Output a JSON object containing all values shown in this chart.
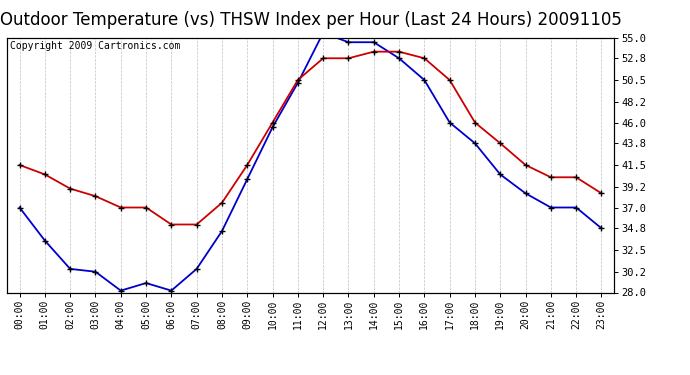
{
  "title": "Outdoor Temperature (vs) THSW Index per Hour (Last 24 Hours) 20091105",
  "copyright": "Copyright 2009 Cartronics.com",
  "hours": [
    "00:00",
    "01:00",
    "02:00",
    "03:00",
    "04:00",
    "05:00",
    "06:00",
    "07:00",
    "08:00",
    "09:00",
    "10:00",
    "11:00",
    "12:00",
    "13:00",
    "14:00",
    "15:00",
    "16:00",
    "17:00",
    "18:00",
    "19:00",
    "20:00",
    "21:00",
    "22:00",
    "23:00"
  ],
  "temp_blue": [
    37.0,
    33.5,
    30.5,
    30.2,
    28.2,
    29.0,
    28.2,
    30.5,
    34.5,
    40.0,
    45.5,
    50.2,
    55.5,
    54.5,
    54.5,
    52.8,
    50.5,
    46.0,
    43.8,
    40.5,
    38.5,
    37.0,
    37.0,
    34.8
  ],
  "thsw_red": [
    41.5,
    40.5,
    39.0,
    38.2,
    37.0,
    37.0,
    35.2,
    35.2,
    37.5,
    41.5,
    46.0,
    50.5,
    52.8,
    52.8,
    53.5,
    53.5,
    52.8,
    50.5,
    46.0,
    43.8,
    41.5,
    40.2,
    40.2,
    38.5
  ],
  "ylim": [
    28.0,
    55.0
  ],
  "yticks_right": [
    28.0,
    30.2,
    32.5,
    34.8,
    37.0,
    39.2,
    41.5,
    43.8,
    46.0,
    48.2,
    50.5,
    52.8,
    55.0
  ],
  "blue_color": "#0000cc",
  "red_color": "#cc0000",
  "marker_color": "#000000",
  "bg_color": "#ffffff",
  "grid_color": "#c0c0c0",
  "title_fontsize": 12,
  "copyright_fontsize": 7
}
